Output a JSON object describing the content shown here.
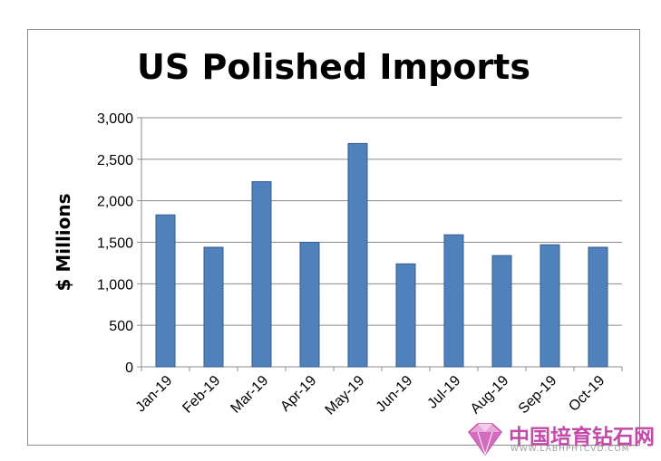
{
  "chart_data": {
    "type": "bar",
    "title": "US Polished Imports",
    "ylabel": "$ Millions",
    "xlabel": "",
    "categories": [
      "Jan-19",
      "Feb-19",
      "Mar-19",
      "Apr-19",
      "May-19",
      "Jun-19",
      "Jul-19",
      "Aug-19",
      "Sep-19",
      "Oct-19"
    ],
    "values": [
      1830,
      1440,
      2230,
      1500,
      2690,
      1240,
      1590,
      1340,
      1470,
      1440
    ],
    "ylim": [
      0,
      3000
    ],
    "yticks": [
      0,
      500,
      1000,
      1500,
      2000,
      2500,
      3000
    ],
    "ytick_labels": [
      "0",
      "500",
      "1,000",
      "1,500",
      "2,000",
      "2,500",
      "3,000"
    ],
    "grid": "horizontal",
    "legend": "none",
    "bar_color": "#4f81bd",
    "bar_border": "#385d8a"
  },
  "watermark": {
    "text": "中国培育钻石网",
    "url": "WWW.LABHPHTCVD.COM",
    "color": "#c44aa8"
  }
}
